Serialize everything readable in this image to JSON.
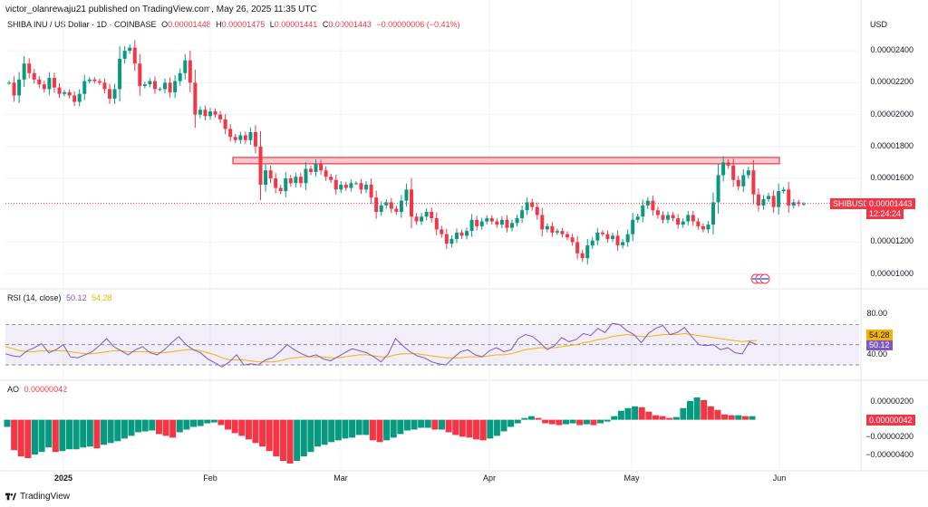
{
  "header": {
    "publisher_text": "victor_olanrewaju21 published on TradingView.com, May 26, 2025 11:35 UTC"
  },
  "legend": {
    "symbol_title": "SHIBA INU / US Dollar · 1D · COINBASE",
    "ohlc": {
      "o_label": "O",
      "o_value": "0.00001448",
      "h_label": "H",
      "h_value": "0.00001475",
      "l_label": "L",
      "l_value": "0.00001441",
      "c_label": "C",
      "c_value": "0.00001443",
      "change": "−0.00000006 (−0.41%)"
    },
    "currency": "USD"
  },
  "price_axis": {
    "ticks": [
      "0.00002400",
      "0.00002200",
      "0.00002000",
      "0.00001800",
      "0.00001600",
      "0.00001200",
      "0.00001000"
    ],
    "symbol_tag": "SHIBUSD",
    "last_price_tag": "0.00001443",
    "countdown_tag": "12:24:24"
  },
  "rsi": {
    "label": "RSI (14, close)",
    "rsi_value": "50.12",
    "ma_value": "54.28",
    "ticks": [
      "80.00",
      "60.00",
      "40.00"
    ],
    "rsi_color": "#7e57c2",
    "ma_color": "#f2b400",
    "band_color": "#7e57c2"
  },
  "ao": {
    "label": "AO",
    "value": "0.00000042",
    "ticks": [
      "0.00000200",
      "−0.00000200",
      "−0.00000400"
    ],
    "up_color": "#089981",
    "down_color": "#f23645"
  },
  "time_axis": {
    "ticks": [
      "2025",
      "Feb",
      "Mar",
      "Apr",
      "May",
      "Jun"
    ]
  },
  "footer": {
    "brand": "TradingView"
  },
  "colors": {
    "up": "#089981",
    "down": "#f23645",
    "resistance_fill": "#f7c9cd",
    "resistance_stroke": "#f23645"
  },
  "chart_data": [
    {
      "type": "candlestick",
      "title": "SHIBA INU / US Dollar · 1D · COINBASE",
      "x_ticks": [
        "2025",
        "Feb",
        "Mar",
        "Apr",
        "May",
        "Jun"
      ],
      "ylim": [
        9.3e-06,
        2.52e-05
      ],
      "y_ticks": [
        2.4e-05,
        2.2e-05,
        2e-05,
        1.8e-05,
        1.6e-05,
        1.2e-05,
        1e-05
      ],
      "resistance_zone": [
        1.71e-05,
        1.72e-05
      ],
      "close_start": 2.2e-05,
      "last_close": 1.443e-05,
      "series": [
        {
          "closes": [
            2.2e-05,
            2.12e-05,
            2.22e-05,
            2.32e-05,
            2.26e-05,
            2.22e-05,
            2.19e-05,
            2.16e-05,
            2.23e-05,
            2.17e-05,
            2.13e-05,
            2.14e-05,
            2.12e-05,
            2.08e-05,
            2.13e-05,
            2.21e-05,
            2.22e-05,
            2.21e-05,
            2.2e-05,
            2.16e-05,
            2.1e-05,
            2.16e-05,
            2.35e-05,
            2.4e-05,
            2.42e-05,
            2.32e-05,
            2.18e-05,
            2.19e-05,
            2.21e-05,
            2.16e-05,
            2.16e-05,
            2.2e-05,
            2.14e-05,
            2.21e-05,
            2.26e-05,
            2.34e-05,
            2.2e-05,
            2e-05,
            2.03e-05,
            1.99e-05,
            2.02e-05,
            2e-05,
            1.97e-05,
            1.91e-05,
            1.86e-05,
            1.84e-05,
            1.87e-05,
            1.84e-05,
            1.89e-05,
            1.8e-05,
            1.56e-05,
            1.65e-05,
            1.6e-05,
            1.54e-05,
            1.52e-05,
            1.6e-05,
            1.57e-05,
            1.61e-05,
            1.57e-05,
            1.66e-05,
            1.64e-05,
            1.69e-05,
            1.65e-05,
            1.61e-05,
            1.59e-05,
            1.53e-05,
            1.56e-05,
            1.54e-05,
            1.57e-05,
            1.57e-05,
            1.53e-05,
            1.56e-05,
            1.48e-05,
            1.39e-05,
            1.43e-05,
            1.45e-05,
            1.41e-05,
            1.39e-05,
            1.46e-05,
            1.53e-05,
            1.36e-05,
            1.33e-05,
            1.36e-05,
            1.39e-05,
            1.35e-05,
            1.28e-05,
            1.25e-05,
            1.19e-05,
            1.22e-05,
            1.26e-05,
            1.24e-05,
            1.27e-05,
            1.34e-05,
            1.3e-05,
            1.33e-05,
            1.35e-05,
            1.33e-05,
            1.31e-05,
            1.34e-05,
            1.29e-05,
            1.32e-05,
            1.35e-05,
            1.4e-05,
            1.45e-05,
            1.42e-05,
            1.37e-05,
            1.28e-05,
            1.3e-05,
            1.26e-05,
            1.27e-05,
            1.25e-05,
            1.23e-05,
            1.2e-05,
            1.13e-05,
            1.1e-05,
            1.18e-05,
            1.21e-05,
            1.26e-05,
            1.25e-05,
            1.22e-05,
            1.24e-05,
            1.18e-05,
            1.2e-05,
            1.25e-05,
            1.34e-05,
            1.36e-05,
            1.43e-05,
            1.46e-05,
            1.4e-05,
            1.37e-05,
            1.34e-05,
            1.37e-05,
            1.35e-05,
            1.31e-05,
            1.33e-05,
            1.37e-05,
            1.33e-05,
            1.3e-05,
            1.28e-05,
            1.31e-05,
            1.45e-05,
            1.62e-05,
            1.7e-05,
            1.68e-05,
            1.59e-05,
            1.55e-05,
            1.62e-05,
            1.65e-05,
            1.5e-05,
            1.43e-05,
            1.47e-05,
            1.49e-05,
            1.42e-05,
            1.52e-05,
            1.53e-05,
            1.43e-05,
            1.45e-05,
            1.44e-05,
            1.44e-05
          ]
        }
      ]
    },
    {
      "type": "line",
      "title": "RSI (14, close)",
      "ylim": [
        22,
        90
      ],
      "y_ticks": [
        80,
        60,
        40
      ],
      "bands": [
        30,
        50,
        70
      ],
      "series": [
        {
          "name": "RSI",
          "values": [
            41,
            39,
            38,
            44,
            47,
            51,
            42,
            45,
            50,
            38,
            37,
            40,
            43,
            49,
            56,
            48,
            44,
            40,
            45,
            48,
            42,
            40,
            45,
            52,
            58,
            50,
            45,
            42,
            36,
            32,
            28,
            33,
            40,
            30,
            31,
            30,
            35,
            37,
            43,
            50,
            45,
            41,
            38,
            40,
            36,
            34,
            38,
            42,
            46,
            44,
            42,
            38,
            33,
            41,
            56,
            49,
            43,
            39,
            37,
            33,
            31,
            30,
            37,
            43,
            45,
            40,
            38,
            44,
            47,
            43,
            45,
            56,
            60,
            58,
            52,
            45,
            49,
            57,
            53,
            55,
            61,
            59,
            66,
            62,
            71,
            70,
            64,
            60,
            52,
            61,
            66,
            69,
            60,
            62,
            67,
            58,
            50,
            49,
            50,
            45,
            47,
            42,
            41,
            53,
            50
          ]
        },
        {
          "name": "RSI-based MA",
          "values": [
            48,
            46,
            44,
            43,
            43,
            44,
            44,
            44,
            44,
            43,
            42,
            41,
            41,
            42,
            43,
            44,
            44,
            43,
            43,
            43,
            43,
            42,
            42,
            43,
            44,
            45,
            45,
            44,
            42,
            40,
            37,
            35,
            35,
            35,
            34,
            33,
            33,
            33,
            34,
            36,
            37,
            38,
            38,
            38,
            38,
            37,
            37,
            38,
            39,
            40,
            40,
            39,
            38,
            38,
            40,
            41,
            41,
            41,
            40,
            39,
            38,
            37,
            37,
            37,
            38,
            38,
            38,
            39,
            40,
            40,
            41,
            43,
            45,
            46,
            47,
            47,
            47,
            48,
            49,
            50,
            52,
            53,
            55,
            56,
            58,
            59,
            60,
            59,
            58,
            58,
            59,
            60,
            60,
            60,
            61,
            60,
            59,
            58,
            57,
            56,
            55,
            54,
            53,
            54,
            54
          ]
        }
      ]
    },
    {
      "type": "bar",
      "title": "AO",
      "ylim": [
        -5.2e-06,
        3.2e-06
      ],
      "y_ticks": [
        2e-06,
        -2e-06,
        -4e-06
      ],
      "series": [
        {
          "name": "AO",
          "values": [
            -8e-07,
            -3.4e-06,
            -4.1e-06,
            -4.3e-06,
            -3.9e-06,
            -3.6e-06,
            -3.1e-06,
            -3.6e-06,
            -3.5e-06,
            -3.3e-06,
            -3.3e-06,
            -3.1e-06,
            -3e-06,
            -3.2e-06,
            -2.8e-06,
            -2.6e-06,
            -2.4e-06,
            -2.1e-06,
            -1.8e-06,
            -1.4e-06,
            -1.3e-06,
            -1.2e-06,
            -1.6e-06,
            -1.8e-06,
            -2e-06,
            -1.4e-06,
            -1.1e-06,
            -8e-07,
            -7e-07,
            -4e-07,
            -3e-07,
            -6e-07,
            -1.1e-06,
            -1.5e-06,
            -1.8e-06,
            -2.2e-06,
            -2.6e-06,
            -3e-06,
            -3.5e-06,
            -4.1e-06,
            -4.6e-06,
            -4.9e-06,
            -4.6e-06,
            -4.1e-06,
            -3.6e-06,
            -3e-06,
            -2.8e-06,
            -2.5e-06,
            -2.3e-06,
            -2.1e-06,
            -2e-06,
            -1.7e-06,
            -1.7e-06,
            -2.3e-06,
            -2.5e-06,
            -2.3e-06,
            -2e-06,
            -1.6e-06,
            -1.2e-06,
            -1.1e-06,
            -9e-07,
            -9e-07,
            -1.1e-06,
            -1.1e-06,
            -1.4e-06,
            -1.7e-06,
            -1.9e-06,
            -2e-06,
            -2.2e-06,
            -2.3e-06,
            -2.1e-06,
            -1.8e-06,
            -1.3e-06,
            -8e-07,
            -4e-07,
            2e-07,
            4e-07,
            2e-07,
            -4e-07,
            -5e-07,
            -6e-07,
            -5e-07,
            -4e-07,
            -6e-07,
            -5e-07,
            -6e-07,
            -4e-07,
            -2e-07,
            4e-07,
            1e-06,
            1.3e-06,
            1.5e-06,
            1.4e-06,
            9e-07,
            5e-07,
            4e-07,
            2e-07,
            3e-07,
            1.3e-06,
            2.1e-06,
            2.5e-06,
            2.2e-06,
            1.5e-06,
            1.1e-06,
            6e-07,
            5e-07,
            5e-07,
            4e-07,
            4e-07
          ]
        }
      ]
    }
  ]
}
